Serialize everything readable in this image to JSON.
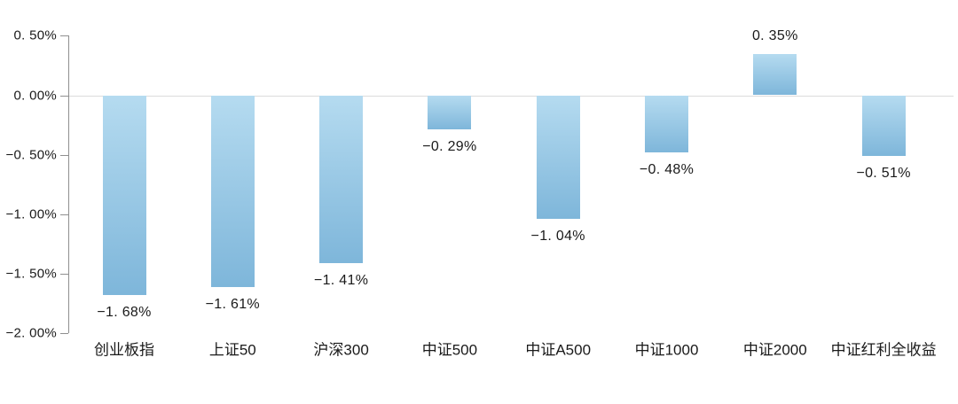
{
  "chart": {
    "background": "#ffffff",
    "axis_color": "#8f8f8f",
    "gridline_color": "#dcdcdc",
    "text_color": "#1a1a1a",
    "bar_gradient_top": "#b5dbf0",
    "bar_gradient_bottom": "#7eb6da"
  },
  "chart_data": {
    "type": "bar",
    "title": "",
    "xlabel": "",
    "ylabel": "",
    "categories": [
      "创业板指",
      "上证50",
      "沪深300",
      "中证500",
      "中证A500",
      "中证1000",
      "中证2000",
      "中证红利全收益"
    ],
    "values": [
      -1.68,
      -1.61,
      -1.41,
      -0.29,
      -1.04,
      -0.48,
      0.35,
      -0.51
    ],
    "bar_labels": [
      "−1. 68%",
      "−1. 61%",
      "−1. 41%",
      "−0. 29%",
      "−1. 04%",
      "−0. 48%",
      "0. 35%",
      "−0. 51%"
    ],
    "y_ticks": [
      0.5,
      0.0,
      -0.5,
      -1.0,
      -1.5,
      -2.0
    ],
    "y_tick_labels": [
      "0. 50%",
      "0. 00%",
      "−0. 50%",
      "−1. 00%",
      "−1. 50%",
      "−2. 00%"
    ],
    "ylim": [
      -2.0,
      0.5
    ],
    "grid": "zero-line-only",
    "legend": "none",
    "bar_color_style": "vertical gradient light-to-dark blue per bar"
  }
}
